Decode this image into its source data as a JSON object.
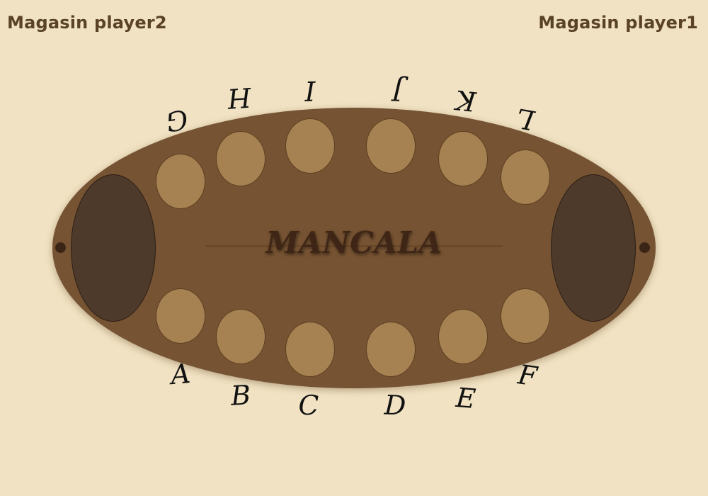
{
  "stores": {
    "player2_label": "Magasin player2",
    "player1_label": "Magasin player1"
  },
  "board": {
    "title": "MANCALA"
  },
  "pits": {
    "bottom_row": [
      {
        "label": "A"
      },
      {
        "label": "B"
      },
      {
        "label": "C"
      },
      {
        "label": "D"
      },
      {
        "label": "E"
      },
      {
        "label": "F"
      }
    ],
    "top_row": [
      {
        "label": "G"
      },
      {
        "label": "H"
      },
      {
        "label": "I"
      },
      {
        "label": "J"
      },
      {
        "label": "K"
      },
      {
        "label": "L"
      }
    ]
  },
  "colors": {
    "background": "#f0e2c2",
    "board": "#765332",
    "pit": "#a68151",
    "store": "#4e3a2b",
    "label_text": "#5a4227"
  }
}
